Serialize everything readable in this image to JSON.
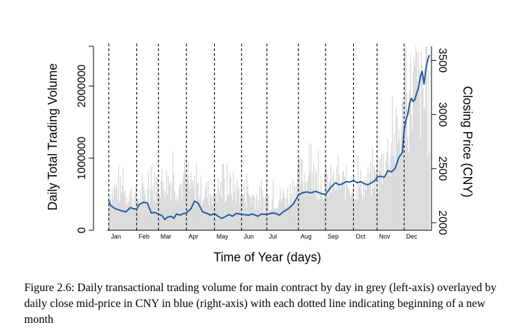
{
  "chart_data": {
    "type": "bar+line",
    "xlabel": "Time of Year (days)",
    "ylabel_left": "Daily Total Trading Volume",
    "ylabel_right": "Closing Price (CNY)",
    "left_axis": {
      "ticks": [
        0,
        1000000,
        2000000
      ],
      "tick_labels": [
        "0",
        "1000000",
        "2000000"
      ],
      "ylim": [
        0,
        2550000
      ]
    },
    "right_axis": {
      "ticks": [
        2000,
        2500,
        3000,
        3500
      ],
      "tick_labels": [
        "2000",
        "2500",
        "3000",
        "3500"
      ],
      "ylim": [
        1930,
        3630
      ]
    },
    "months": [
      "Jan",
      "Feb",
      "Mar",
      "Apr",
      "May",
      "Jun",
      "Jul",
      "Aug",
      "Sep",
      "Oct",
      "Nov",
      "Dec"
    ],
    "month_start_days": [
      1,
      32,
      56,
      87,
      118,
      148,
      176,
      211,
      241,
      272,
      298,
      328
    ],
    "total_days": 356,
    "volume_series": {
      "color": "#d9d9d9",
      "anchors_day": [
        1,
        10,
        20,
        32,
        45,
        56,
        70,
        80,
        87,
        100,
        110,
        118,
        130,
        140,
        148,
        160,
        176,
        190,
        200,
        211,
        220,
        230,
        241,
        255,
        272,
        285,
        298,
        308,
        318,
        328,
        336,
        342,
        350,
        356
      ],
      "anchors_value": [
        550000,
        620000,
        570000,
        480000,
        550000,
        720000,
        740000,
        680000,
        640000,
        620000,
        560000,
        600000,
        620000,
        650000,
        560000,
        500000,
        460000,
        480000,
        520000,
        800000,
        830000,
        760000,
        730000,
        700000,
        690000,
        680000,
        820000,
        1100000,
        1300000,
        1600000,
        2100000,
        2150000,
        1900000,
        1700000
      ]
    },
    "price_series": {
      "color": "#1f5aa0",
      "x": [
        1,
        3,
        8,
        15,
        20,
        25,
        28,
        32,
        35,
        40,
        44,
        48,
        52,
        56,
        60,
        63,
        66,
        70,
        73,
        76,
        80,
        84,
        87,
        92,
        96,
        100,
        105,
        110,
        114,
        118,
        122,
        126,
        130,
        134,
        138,
        142,
        146,
        150,
        156,
        160,
        166,
        170,
        176,
        182,
        186,
        190,
        194,
        200,
        205,
        211,
        215,
        220,
        225,
        230,
        236,
        241,
        246,
        252,
        256,
        260,
        264,
        268,
        272,
        276,
        280,
        284,
        288,
        292,
        296,
        298,
        302,
        306,
        310,
        314,
        318,
        322,
        326,
        328,
        330,
        332,
        334,
        336,
        338,
        340,
        342,
        344,
        346,
        348,
        350,
        352,
        354,
        356
      ],
      "y": [
        2210,
        2160,
        2130,
        2110,
        2100,
        2140,
        2130,
        2125,
        2170,
        2190,
        2180,
        2090,
        2095,
        2080,
        2065,
        2030,
        2050,
        2060,
        2040,
        2080,
        2070,
        2085,
        2090,
        2130,
        2200,
        2180,
        2100,
        2085,
        2070,
        2085,
        2060,
        2040,
        2055,
        2075,
        2060,
        2085,
        2080,
        2075,
        2070,
        2080,
        2060,
        2080,
        2075,
        2090,
        2085,
        2070,
        2100,
        2130,
        2170,
        2255,
        2275,
        2285,
        2275,
        2290,
        2270,
        2260,
        2320,
        2370,
        2350,
        2360,
        2380,
        2375,
        2390,
        2370,
        2380,
        2360,
        2350,
        2370,
        2390,
        2420,
        2430,
        2420,
        2480,
        2470,
        2500,
        2600,
        2650,
        2850,
        2950,
        3000,
        3100,
        3150,
        3120,
        3140,
        3200,
        3250,
        3350,
        3400,
        3280,
        3420,
        3500,
        3550
      ]
    }
  },
  "caption": "Figure 2.6: Daily transactional trading volume for main contract by day in grey (left-axis) overlayed by daily close mid-price in CNY in blue (right-axis) with each dotted line indicating beginning of a new month"
}
